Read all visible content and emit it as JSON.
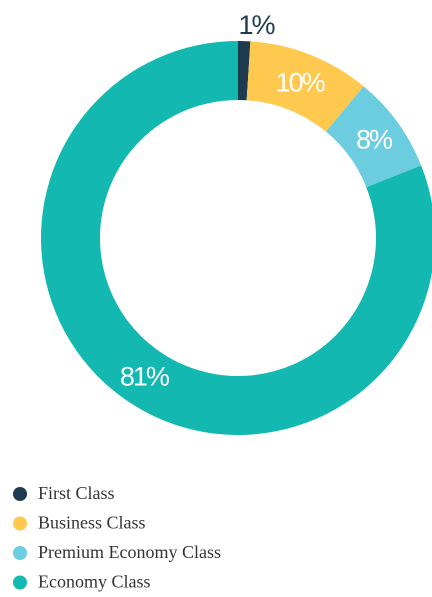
{
  "chart_data": {
    "type": "donut",
    "categories": [
      "First Class",
      "Business Class",
      "Premium Economy Class",
      "Economy Class"
    ],
    "values": [
      1,
      10,
      8,
      81
    ],
    "value_labels": [
      "1%",
      "10%",
      "8%",
      "81%"
    ],
    "colors": [
      "#1d3a4e",
      "#ffc84e",
      "#6dcde0",
      "#13b9b1"
    ]
  }
}
